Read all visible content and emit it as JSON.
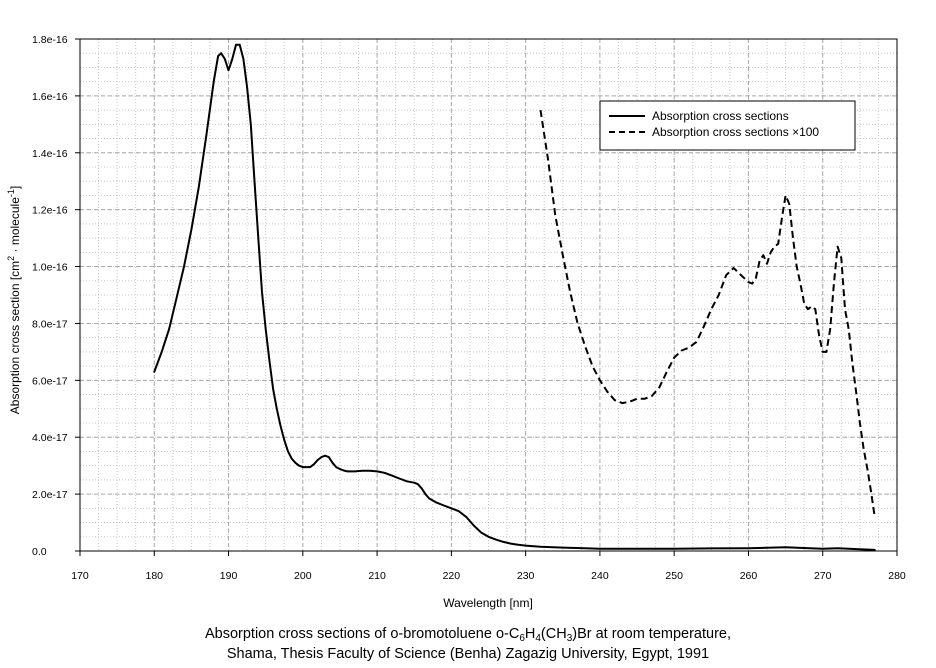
{
  "chart_data": {
    "type": "line",
    "xlabel": "Wavelength [nm]",
    "ylabel_main": "Absorption cross section [cm",
    "ylabel_sup1": "2",
    "ylabel_mid": " · molecule",
    "ylabel_sup2": "-1",
    "ylabel_end": "]",
    "xlim": [
      170,
      280
    ],
    "ylim": [
      0,
      1.8e-16
    ],
    "xticks": [
      170,
      180,
      190,
      200,
      210,
      220,
      230,
      240,
      250,
      260,
      270,
      280
    ],
    "xtick_labels": [
      "170",
      "180",
      "190",
      "200",
      "210",
      "220",
      "230",
      "240",
      "250",
      "260",
      "270",
      "280"
    ],
    "yticks": [
      0,
      2e-17,
      4e-17,
      6e-17,
      8e-17,
      1e-16,
      1.2e-16,
      1.4e-16,
      1.6e-16,
      1.8e-16
    ],
    "ytick_labels": [
      "0.0",
      "2.0e-17",
      "4.0e-17",
      "6.0e-17",
      "8.0e-17",
      "1.0e-16",
      "1.2e-16",
      "1.4e-16",
      "1.6e-16",
      "1.8e-16"
    ],
    "grid": true,
    "legend_position": "top-right",
    "series": [
      {
        "name": "Absorption cross sections",
        "style": "solid",
        "color": "#000000",
        "x": [
          180,
          181,
          182,
          183,
          184,
          185,
          186,
          187,
          188,
          188.6,
          189,
          189.5,
          190,
          190.5,
          191,
          191.5,
          192,
          192.5,
          193,
          193.5,
          194,
          194.5,
          195,
          195.5,
          196,
          196.5,
          197,
          197.5,
          198,
          198.5,
          199,
          199.5,
          200,
          200.5,
          201,
          201.5,
          202,
          202.5,
          203,
          203.5,
          204,
          204.5,
          205,
          205.5,
          206,
          207,
          208,
          209,
          210,
          211,
          212,
          213,
          214,
          215,
          215.5,
          216,
          216.5,
          217,
          218,
          219,
          220,
          221,
          222,
          223,
          224,
          225,
          226,
          227,
          228,
          229,
          230,
          232,
          235,
          238,
          240,
          245,
          250,
          255,
          260,
          265,
          267,
          270,
          272,
          275,
          277
        ],
        "y": [
          6.3e-17,
          7e-17,
          7.8e-17,
          8.9e-17,
          1e-16,
          1.13e-16,
          1.28e-16,
          1.46e-16,
          1.65e-16,
          1.74e-16,
          1.75e-16,
          1.73e-16,
          1.69e-16,
          1.73e-16,
          1.78e-16,
          1.78e-16,
          1.73e-16,
          1.63e-16,
          1.5e-16,
          1.3e-16,
          1.1e-16,
          9.1e-17,
          7.8e-17,
          6.7e-17,
          5.7e-17,
          5e-17,
          4.4e-17,
          3.9e-17,
          3.5e-17,
          3.25e-17,
          3.1e-17,
          3e-17,
          2.95e-17,
          2.95e-17,
          2.95e-17,
          3.05e-17,
          3.2e-17,
          3.3e-17,
          3.35e-17,
          3.3e-17,
          3.1e-17,
          2.95e-17,
          2.88e-17,
          2.83e-17,
          2.8e-17,
          2.8e-17,
          2.82e-17,
          2.82e-17,
          2.8e-17,
          2.75e-17,
          2.65e-17,
          2.55e-17,
          2.45e-17,
          2.4e-17,
          2.35e-17,
          2.2e-17,
          2e-17,
          1.85e-17,
          1.7e-17,
          1.6e-17,
          1.5e-17,
          1.4e-17,
          1.2e-17,
          9e-18,
          6.5e-18,
          5e-18,
          4e-18,
          3.2e-18,
          2.6e-18,
          2.2e-18,
          1.9e-18,
          1.5e-18,
          1.2e-18,
          1e-18,
          8e-19,
          8e-19,
          8e-19,
          9e-19,
          1e-18,
          1.3e-18,
          1.1e-18,
          8e-19,
          1e-18,
          6e-19,
          4e-19
        ]
      },
      {
        "name": "Absorption cross sections ×100",
        "style": "dashed",
        "color": "#000000",
        "x": [
          232,
          233,
          234,
          235,
          236,
          237,
          238,
          239,
          240,
          241,
          242,
          243,
          244,
          245,
          246,
          247,
          248,
          249,
          250,
          251,
          252,
          253,
          254,
          255,
          256,
          257,
          258,
          259,
          260,
          260.5,
          261,
          261.5,
          262,
          262.5,
          263,
          263.5,
          264,
          264.5,
          265,
          265.5,
          266,
          266.5,
          267,
          267.5,
          268,
          268.5,
          269,
          269.5,
          270,
          270.5,
          271,
          271.5,
          272,
          272.5,
          273,
          273.5,
          274,
          274.5,
          275,
          275.5,
          276,
          276.5,
          277
        ],
        "y": [
          1.55e-16,
          1.38e-16,
          1.18e-16,
          1.04e-16,
          9.1e-17,
          8e-17,
          7.2e-17,
          6.5e-17,
          6e-17,
          5.6e-17,
          5.3e-17,
          5.2e-17,
          5.25e-17,
          5.35e-17,
          5.35e-17,
          5.45e-17,
          5.75e-17,
          6.3e-17,
          6.8e-17,
          7.05e-17,
          7.15e-17,
          7.35e-17,
          7.9e-17,
          8.5e-17,
          9e-17,
          9.7e-17,
          9.95e-17,
          9.7e-17,
          9.45e-17,
          9.4e-17,
          9.6e-17,
          1.02e-16,
          1.04e-16,
          1.01e-16,
          1.05e-16,
          1.07e-16,
          1.08e-16,
          1.17e-16,
          1.25e-16,
          1.22e-16,
          1.1e-16,
          1e-16,
          9.4e-17,
          8.7e-17,
          8.5e-17,
          8.6e-17,
          8.5e-17,
          7.6e-17,
          7e-17,
          7e-17,
          7.8e-17,
          9.4e-17,
          1.07e-16,
          1.03e-16,
          8.5e-17,
          7.8e-17,
          6.6e-17,
          5.6e-17,
          4.5e-17,
          3.6e-17,
          2.9e-17,
          2.1e-17,
          1.2e-17
        ]
      }
    ]
  },
  "caption": {
    "line1_a": "Absorption cross sections of o-bromotoluene o-C",
    "line1_sub1": "6",
    "line1_b": "H",
    "line1_sub2": "4",
    "line1_c": "(CH",
    "line1_sub3": "3",
    "line1_d": ")Br at room temperature,",
    "line2": "Shama, Thesis Faculty of Science (Benha) Zagazig University, Egypt, 1991"
  }
}
